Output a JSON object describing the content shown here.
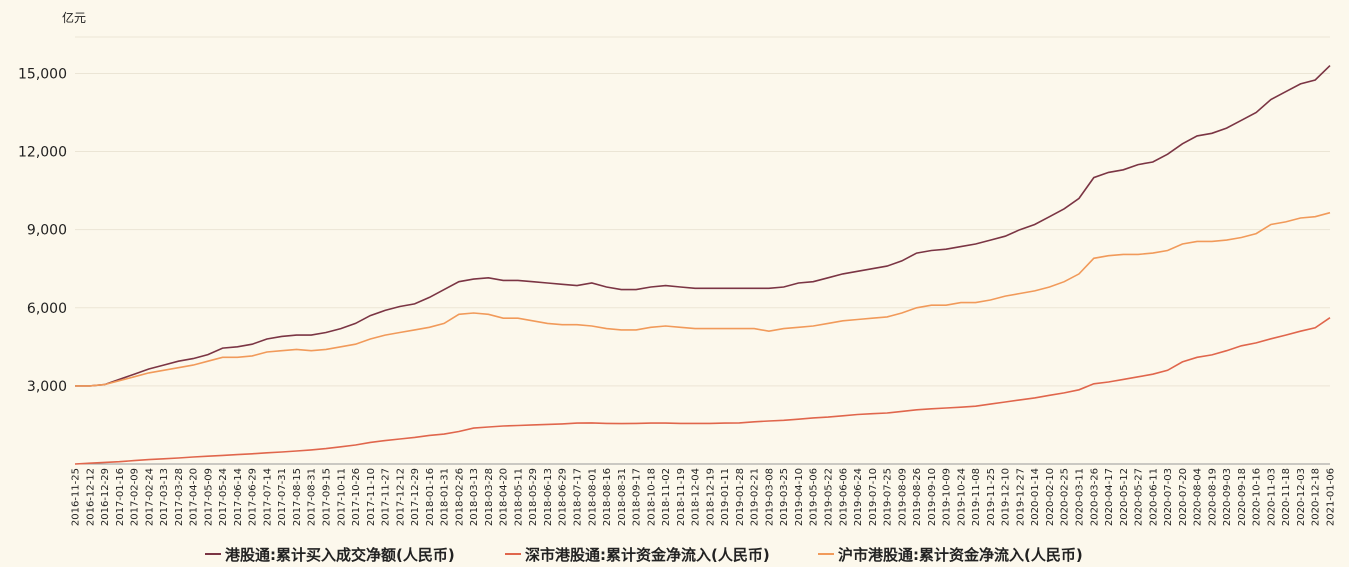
{
  "chart_data": {
    "type": "line",
    "y_unit": "亿元",
    "categories": [
      "2016-11-25",
      "2016-12-12",
      "2016-12-29",
      "2017-01-16",
      "2017-02-09",
      "2017-02-24",
      "2017-03-13",
      "2017-03-28",
      "2017-04-20",
      "2017-05-09",
      "2017-05-24",
      "2017-06-14",
      "2017-06-29",
      "2017-07-14",
      "2017-07-31",
      "2017-08-15",
      "2017-08-31",
      "2017-09-15",
      "2017-10-11",
      "2017-10-26",
      "2017-11-10",
      "2017-11-27",
      "2017-12-12",
      "2017-12-29",
      "2018-01-16",
      "2018-01-31",
      "2018-02-26",
      "2018-03-13",
      "2018-03-28",
      "2018-04-20",
      "2018-05-11",
      "2018-05-29",
      "2018-06-13",
      "2018-06-29",
      "2018-07-17",
      "2018-08-01",
      "2018-08-16",
      "2018-08-31",
      "2018-09-17",
      "2018-10-18",
      "2018-11-02",
      "2018-11-19",
      "2018-12-04",
      "2018-12-19",
      "2019-01-11",
      "2019-01-28",
      "2019-02-21",
      "2019-03-08",
      "2019-03-25",
      "2019-04-10",
      "2019-05-06",
      "2019-05-22",
      "2019-06-06",
      "2019-06-24",
      "2019-07-10",
      "2019-07-25",
      "2019-08-09",
      "2019-08-26",
      "2019-09-10",
      "2019-10-09",
      "2019-10-24",
      "2019-11-08",
      "2019-11-25",
      "2019-12-10",
      "2019-12-27",
      "2020-01-14",
      "2020-02-10",
      "2020-02-25",
      "2020-03-11",
      "2020-03-26",
      "2020-04-17",
      "2020-05-12",
      "2020-05-27",
      "2020-06-11",
      "2020-07-03",
      "2020-07-20",
      "2020-08-04",
      "2020-08-19",
      "2020-09-03",
      "2020-09-18",
      "2020-10-16",
      "2020-11-03",
      "2020-11-18",
      "2020-12-03",
      "2020-12-18",
      "2021-01-06"
    ],
    "series": [
      {
        "name": "港股通:累计买入成交净额(人民币)",
        "color": "#7b3544",
        "values": [
          3000,
          3000,
          3050,
          3250,
          3450,
          3650,
          3800,
          3950,
          4050,
          4200,
          4450,
          4500,
          4600,
          4800,
          4900,
          4950,
          4950,
          5050,
          5200,
          5400,
          5700,
          5900,
          6050,
          6150,
          6400,
          6700,
          7000,
          7100,
          7150,
          7050,
          7050,
          7000,
          6950,
          6900,
          6850,
          6950,
          6800,
          6700,
          6700,
          6800,
          6850,
          6800,
          6750,
          6750,
          6750,
          6750,
          6750,
          6750,
          6800,
          6950,
          7000,
          7150,
          7300,
          7400,
          7500,
          7600,
          7800,
          8100,
          8200,
          8250,
          8350,
          8450,
          8600,
          8750,
          9000,
          9200,
          9500,
          9800,
          10200,
          11000,
          11200,
          11300,
          11500,
          11600,
          11900,
          12300,
          12600,
          12700,
          12900,
          13200,
          13500,
          14000,
          14300,
          14600,
          14750,
          15300
        ]
      },
      {
        "name": "深市港股通:累计资金净流入(人民币)",
        "color": "#e0664c",
        "values": [
          0,
          30,
          60,
          90,
          130,
          170,
          200,
          230,
          270,
          300,
          330,
          360,
          390,
          430,
          460,
          500,
          540,
          590,
          660,
          730,
          830,
          900,
          960,
          1020,
          1100,
          1150,
          1250,
          1380,
          1420,
          1460,
          1480,
          1500,
          1520,
          1540,
          1570,
          1580,
          1560,
          1550,
          1560,
          1570,
          1570,
          1560,
          1560,
          1560,
          1570,
          1580,
          1620,
          1650,
          1680,
          1720,
          1770,
          1800,
          1850,
          1900,
          1930,
          1960,
          2020,
          2080,
          2120,
          2150,
          2180,
          2220,
          2300,
          2380,
          2460,
          2540,
          2640,
          2730,
          2850,
          3080,
          3150,
          3250,
          3350,
          3450,
          3600,
          3920,
          4100,
          4190,
          4350,
          4540,
          4650,
          4810,
          4950,
          5100,
          5230,
          5620
        ]
      },
      {
        "name": "沪市港股通:累计资金净流入(人民币)",
        "color": "#f19a5a",
        "values": [
          3000,
          3000,
          3050,
          3200,
          3350,
          3500,
          3600,
          3700,
          3800,
          3950,
          4100,
          4100,
          4150,
          4300,
          4350,
          4400,
          4350,
          4400,
          4500,
          4600,
          4800,
          4950,
          5050,
          5150,
          5250,
          5400,
          5750,
          5800,
          5750,
          5600,
          5600,
          5500,
          5400,
          5350,
          5350,
          5300,
          5200,
          5150,
          5150,
          5250,
          5300,
          5250,
          5200,
          5200,
          5200,
          5200,
          5200,
          5100,
          5200,
          5250,
          5300,
          5400,
          5500,
          5550,
          5600,
          5650,
          5800,
          6000,
          6100,
          6100,
          6200,
          6200,
          6300,
          6450,
          6550,
          6650,
          6800,
          7000,
          7300,
          7900,
          8000,
          8050,
          8050,
          8100,
          8200,
          8450,
          8550,
          8550,
          8600,
          8700,
          8850,
          9200,
          9300,
          9450,
          9500,
          9650
        ]
      }
    ],
    "ylim": [
      0,
      16400
    ],
    "yticks": [
      {
        "value": 3000,
        "label": "3,000"
      },
      {
        "value": 6000,
        "label": "6,000"
      },
      {
        "value": 9000,
        "label": "9,000"
      },
      {
        "value": 12000,
        "label": "12,000"
      },
      {
        "value": 15000,
        "label": "15,000"
      }
    ],
    "grid": true,
    "legend": "bottom"
  }
}
